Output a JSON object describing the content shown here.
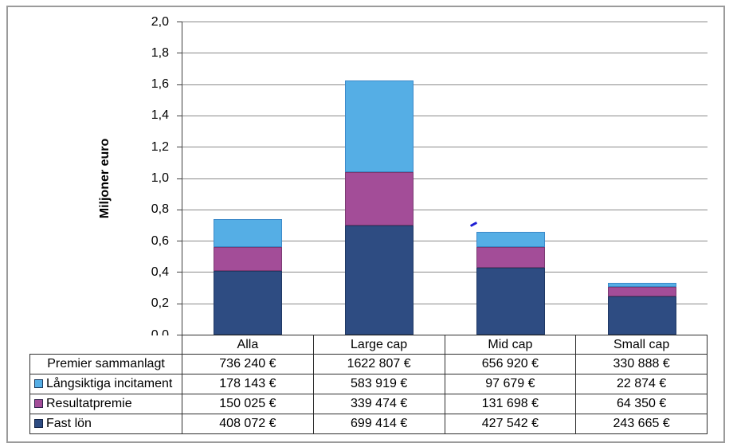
{
  "chart_data": {
    "type": "bar",
    "stacked": true,
    "title": "",
    "ylabel": "Miljoner euro",
    "ylim": [
      0,
      2.0
    ],
    "ytick_step": 0.2,
    "y_tick_labels": [
      "2,0",
      "1,8",
      "1,6",
      "1,4",
      "1,2",
      "1,0",
      "0,8",
      "0,6",
      "0,4",
      "0,2",
      "0,0"
    ],
    "grid": true,
    "unit_divisor": 1000000,
    "categories": [
      "Alla",
      "Large cap",
      "Mid cap",
      "Small cap"
    ],
    "series": [
      {
        "name": "Fast lön",
        "color": "#2E4C82",
        "border": "#1F3864",
        "values_eur": [
          408072,
          699414,
          427542,
          243665
        ]
      },
      {
        "name": "Resultatpremie",
        "color": "#A34D98",
        "border": "#7A3A72",
        "values_eur": [
          150025,
          339474,
          131698,
          64350
        ]
      },
      {
        "name": "Långsiktiga incitament",
        "color": "#55AEE5",
        "border": "#3B89C9",
        "values_eur": [
          178143,
          583919,
          97679,
          22874
        ]
      }
    ],
    "totals": {
      "label": "Premier sammanlagt",
      "values_eur": [
        736240,
        1622807,
        656920,
        330888
      ]
    },
    "legend_position": "table-left"
  },
  "table": {
    "rows": [
      {
        "label": "Premier sammanlagt",
        "swatch": null,
        "values": [
          "736 240 €",
          "1622 807 €",
          "656 920 €",
          "330 888 €"
        ]
      },
      {
        "label": "Långsiktiga incitament",
        "swatch": "#55AEE5",
        "values": [
          "178 143 €",
          "583 919 €",
          "97 679 €",
          "22 874 €"
        ]
      },
      {
        "label": "Resultatpremie",
        "swatch": "#A34D98",
        "values": [
          "150 025 €",
          "339 474 €",
          "131 698 €",
          "64 350 €"
        ]
      },
      {
        "label": "Fast lön",
        "swatch": "#2E4C82",
        "values": [
          "408 072 €",
          "699 414 €",
          "427 542 €",
          "243 665 €"
        ]
      }
    ]
  },
  "colors": {
    "frame": "#9B9B9B",
    "gridline": "#8A8A8A",
    "axis": "#3F3F3F",
    "table_border": "#2E2E2E",
    "stray_mark": "#1F1FD4",
    "background": "#FFFFFF"
  }
}
